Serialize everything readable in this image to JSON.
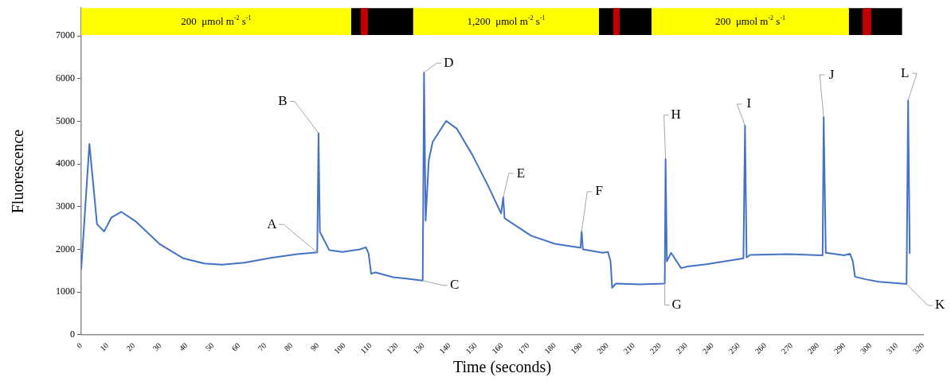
{
  "chart_data": {
    "type": "line",
    "xlabel": "Time (seconds)",
    "ylabel": "Fluorescence",
    "x": [
      0,
      3.1,
      6,
      8.7,
      11.5,
      15.2,
      20.6,
      29.7,
      38.8,
      46.8,
      53.4,
      62,
      72,
      82.1,
      89.7,
      90.2,
      90.7,
      94.3,
      99.3,
      105.9,
      108.2,
      109.2,
      110.2,
      111.9,
      118.5,
      129.8,
      130.3,
      130.9,
      132.1,
      133.6,
      138.7,
      142.7,
      148.7,
      154.8,
      159.6,
      160.4,
      160.9,
      171,
      180,
      189.8,
      190.2,
      190.7,
      198.2,
      200.2,
      201.2,
      201.8,
      203.2,
      212.3,
      221.8,
      222.1,
      222.6,
      224.2,
      228,
      230.5,
      237.6,
      251.7,
      252.3,
      252.9,
      254.2,
      268.8,
      281.8,
      282.2,
      283,
      290,
      292.2,
      293.3,
      294.1,
      298.1,
      303.2,
      313.7,
      314.3,
      314.9
    ],
    "series": [
      {
        "color": "#4472c4",
        "values": [
          1540,
          4470,
          2590,
          2420,
          2750,
          2880,
          2660,
          2130,
          1790,
          1670,
          1640,
          1690,
          1800,
          1890,
          1930,
          4720,
          2410,
          1980,
          1940,
          2000,
          2050,
          1910,
          1430,
          1460,
          1350,
          1270,
          6140,
          2670,
          4090,
          4520,
          5010,
          4830,
          4210,
          3470,
          2840,
          3220,
          2730,
          2320,
          2130,
          2040,
          2420,
          2000,
          1920,
          1940,
          1720,
          1100,
          1200,
          1180,
          1200,
          4120,
          1720,
          1920,
          1560,
          1600,
          1650,
          1790,
          4900,
          1810,
          1870,
          1890,
          1860,
          5100,
          1920,
          1860,
          1900,
          1720,
          1360,
          1300,
          1240,
          1190,
          5490,
          1910
        ]
      }
    ],
    "xlim": [
      0,
      320
    ],
    "xticks": [
      0,
      10,
      20,
      30,
      40,
      50,
      60,
      70,
      80,
      90,
      100,
      110,
      120,
      130,
      140,
      150,
      160,
      170,
      180,
      190,
      200,
      210,
      220,
      230,
      240,
      250,
      260,
      270,
      280,
      290,
      300,
      310,
      320
    ],
    "ylim": [
      0,
      7650
    ],
    "yticks": [
      0,
      1000,
      2000,
      3000,
      4000,
      5000,
      6000,
      7000
    ],
    "grid": false,
    "legend": false,
    "marker": "none",
    "line_style": "solid",
    "bands": [
      {
        "axis": "x",
        "from": 0,
        "to": 102.6,
        "label": "200  μmol m$^{-2}$ s$^{-1}$",
        "color": "#ffff00"
      },
      {
        "axis": "x",
        "from": 102.6,
        "to": 126.2,
        "color": "#000000"
      },
      {
        "axis": "x",
        "from": 106.2,
        "to": 109,
        "color": "#c00000"
      },
      {
        "axis": "x",
        "from": 126.2,
        "to": 196.8,
        "label": "1,200  μmol m$^{-2}$ s$^{-1}$",
        "color": "#ffff00"
      },
      {
        "axis": "x",
        "from": 196.8,
        "to": 216.8,
        "color": "#000000"
      },
      {
        "axis": "x",
        "from": 202.2,
        "to": 204.7,
        "color": "#c00000"
      },
      {
        "axis": "x",
        "from": 216.8,
        "to": 291.8,
        "label": "200  μmol m$^{-2}$ s$^{-1}$",
        "color": "#ffff00"
      },
      {
        "axis": "x",
        "from": 291.8,
        "to": 312,
        "color": "#000000"
      },
      {
        "axis": "x",
        "from": 297,
        "to": 300.3,
        "color": "#c00000"
      }
    ],
    "annotations": [
      {
        "text": "A",
        "x": 89.7,
        "y": 1930
      },
      {
        "text": "B",
        "x": 90.2,
        "y": 4720
      },
      {
        "text": "C",
        "x": 129.8,
        "y": 1270
      },
      {
        "text": "D",
        "x": 130.3,
        "y": 6140
      },
      {
        "text": "E",
        "x": 160.4,
        "y": 3220
      },
      {
        "text": "F",
        "x": 190.2,
        "y": 2420
      },
      {
        "text": "G",
        "x": 221.8,
        "y": 1200
      },
      {
        "text": "H",
        "x": 222.1,
        "y": 4120
      },
      {
        "text": "I",
        "x": 252.3,
        "y": 4900
      },
      {
        "text": "J",
        "x": 282.2,
        "y": 5100
      },
      {
        "text": "K",
        "x": 313.7,
        "y": 1190
      },
      {
        "text": "L",
        "x": 314.3,
        "y": 5490
      }
    ]
  }
}
